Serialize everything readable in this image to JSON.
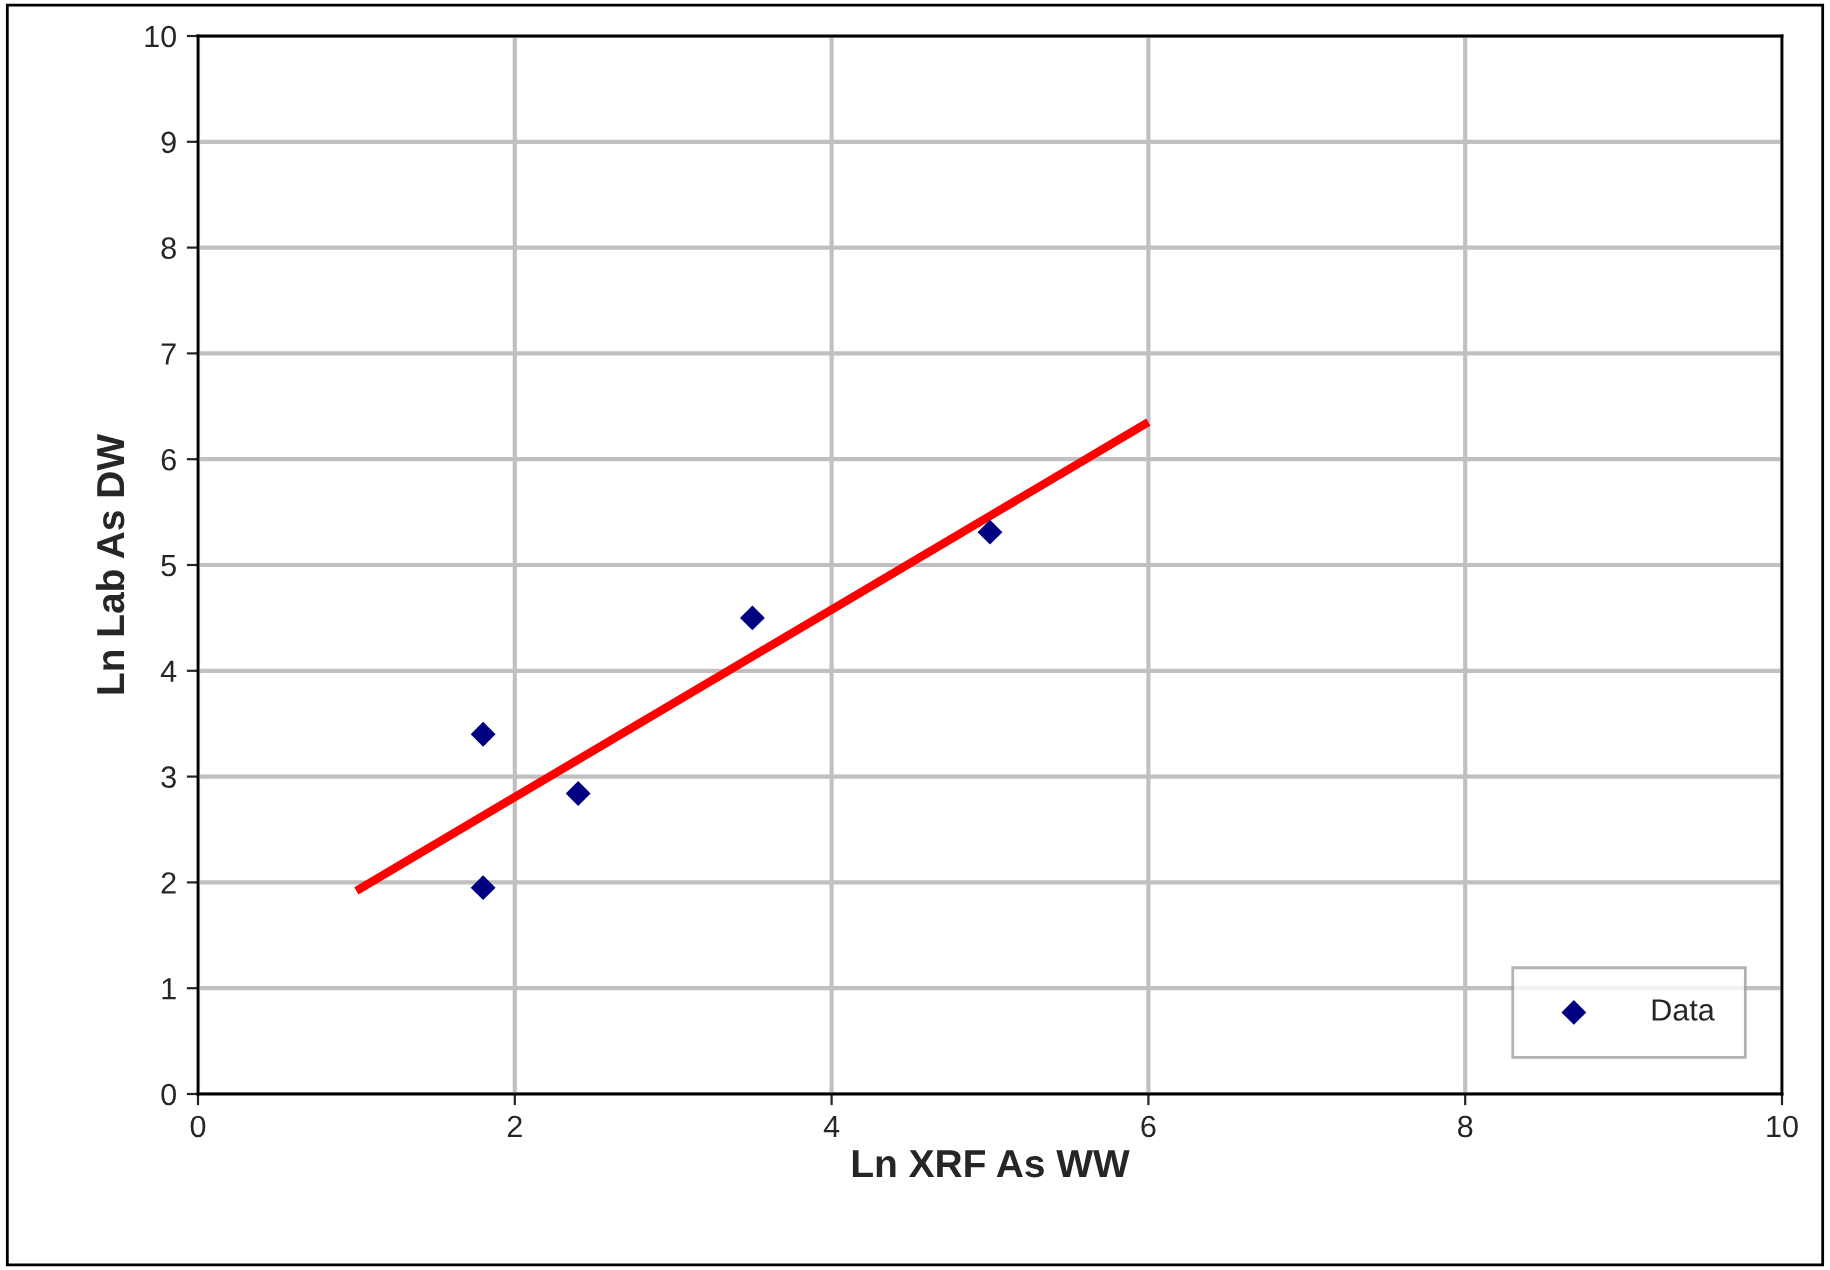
{
  "chart_data": {
    "type": "scatter",
    "xlabel": "Ln XRF As WW",
    "ylabel": "Ln Lab As DW",
    "xlim": [
      0,
      10
    ],
    "ylim": [
      0,
      10
    ],
    "xticks": [
      0,
      2,
      4,
      6,
      8,
      10
    ],
    "yticks": [
      0,
      1,
      2,
      3,
      4,
      5,
      6,
      7,
      8,
      9,
      10
    ],
    "grid": true,
    "legend": "bottom right",
    "series": [
      {
        "name": "Data",
        "marker": "diamond",
        "color": "#000080",
        "x": [
          1.8,
          1.8,
          2.4,
          3.5,
          5.0
        ],
        "values": [
          3.4,
          1.95,
          2.84,
          4.5,
          5.31
        ]
      },
      {
        "type": "line",
        "color": "#ff0000",
        "x": [
          1.0,
          6.0
        ],
        "values": [
          1.92,
          6.35
        ]
      }
    ]
  }
}
